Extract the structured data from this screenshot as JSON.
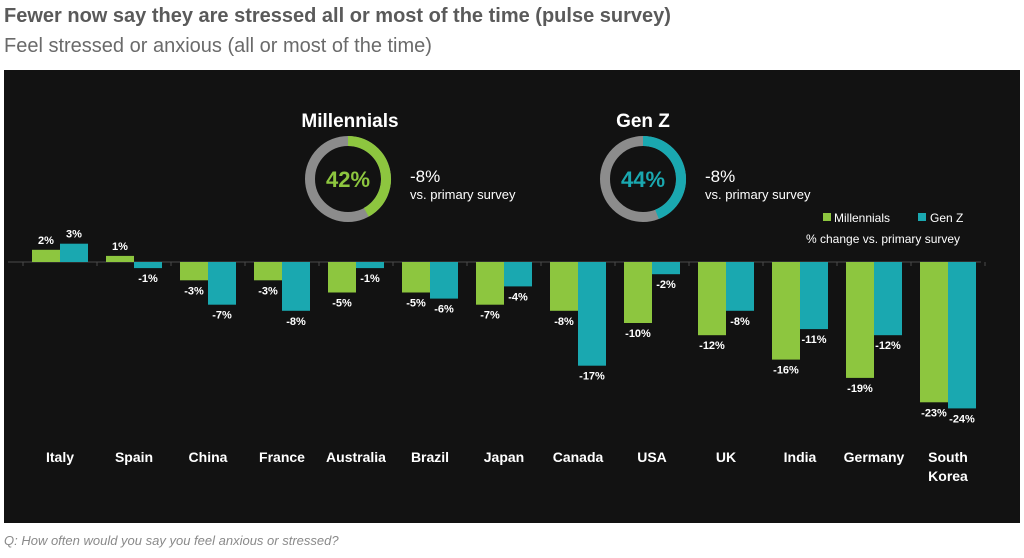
{
  "header": {
    "title": "Fewer now say they are stressed all or most of the time (pulse survey)",
    "subtitle": "Feel stressed or anxious (all or most of the time)"
  },
  "footnote": "Q: How often would you say you feel anxious or stressed?",
  "colors": {
    "millennials": "#8dc63f",
    "genz": "#1aa8b0",
    "background": "#121212",
    "ring_track": "#8c8c8c"
  },
  "donuts": [
    {
      "label": "Millennials",
      "value_text": "42%",
      "value": 42,
      "change": "-8%",
      "change_note": "vs. primary survey",
      "color": "#8dc63f"
    },
    {
      "label": "Gen Z",
      "value_text": "44%",
      "value": 44,
      "change": "-8%",
      "change_note": "vs. primary survey",
      "color": "#1aa8b0"
    }
  ],
  "chart_data": {
    "type": "bar",
    "categories": [
      "Italy",
      "Spain",
      "China",
      "France",
      "Australia",
      "Brazil",
      "Japan",
      "Canada",
      "USA",
      "UK",
      "India",
      "Germany",
      "South Korea"
    ],
    "series": [
      {
        "name": "Millennials",
        "values": [
          2,
          1,
          -3,
          -3,
          -5,
          -5,
          -7,
          -8,
          -10,
          -12,
          -16,
          -19,
          -23
        ],
        "labels": [
          "2%",
          "1%",
          "-3%",
          "-3%",
          "-5%",
          "-5%",
          "-7%",
          "-8%",
          "-10%",
          "-12%",
          "-16%",
          "-19%",
          "-23%"
        ]
      },
      {
        "name": "Gen Z",
        "values": [
          3,
          -1,
          -7,
          -8,
          -1,
          -6,
          -4,
          -17,
          -2,
          -8,
          -11,
          -12,
          -24
        ],
        "labels": [
          "3%",
          "-1%",
          "-7%",
          "-8%",
          "-1%",
          "-6%",
          "-4%",
          "-17%",
          "-2%",
          "-8%",
          "-11%",
          "-12%",
          "-24%"
        ]
      }
    ],
    "legend_note": "% change vs. primary survey",
    "legend_position": "top-right",
    "grid": false
  }
}
